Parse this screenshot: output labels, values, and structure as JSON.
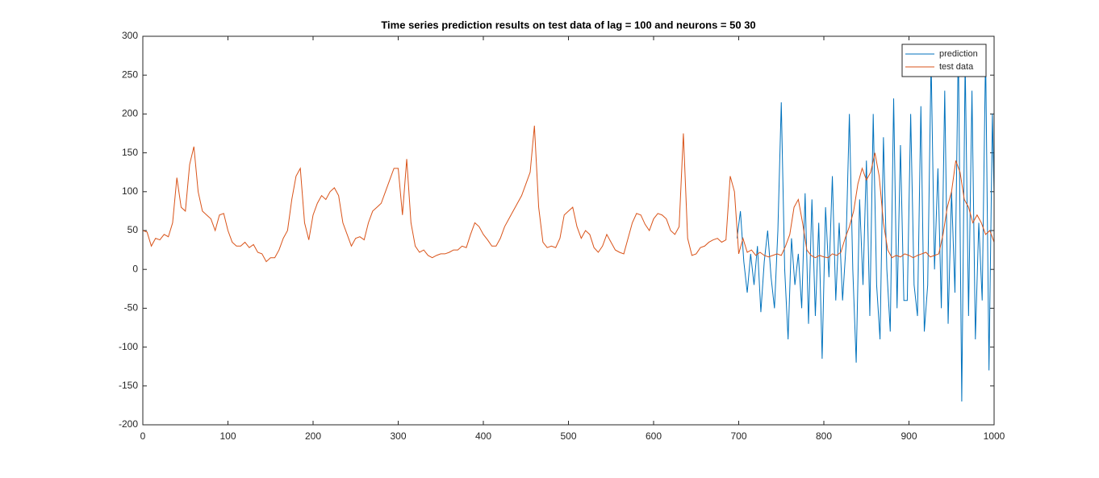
{
  "chart_data": {
    "type": "line",
    "title": "Time series prediction results on test data of lag = 100 and neurons = 50  30",
    "xlim": [
      0,
      1000
    ],
    "xticks": [
      0,
      100,
      200,
      300,
      400,
      500,
      600,
      700,
      800,
      900,
      1000
    ],
    "ylim": [
      -200,
      300
    ],
    "yticks": [
      -200,
      -150,
      -100,
      -50,
      0,
      50,
      100,
      150,
      200,
      250,
      300
    ],
    "grid": false,
    "legend": "northeast",
    "series": [
      {
        "name": "prediction",
        "color": "#0072bd",
        "x": [
          698,
          702,
          706,
          710,
          714,
          718,
          722,
          726,
          730,
          734,
          738,
          742,
          746,
          750,
          754,
          758,
          762,
          766,
          770,
          774,
          778,
          782,
          786,
          790,
          794,
          798,
          802,
          806,
          810,
          814,
          818,
          822,
          826,
          830,
          834,
          838,
          842,
          846,
          850,
          854,
          858,
          862,
          866,
          870,
          874,
          878,
          882,
          886,
          890,
          894,
          898,
          902,
          906,
          910,
          914,
          918,
          922,
          926,
          930,
          934,
          938,
          942,
          946,
          950,
          954,
          958,
          962,
          966,
          970,
          974,
          978,
          982,
          986,
          990,
          994,
          998,
          1000
        ],
        "values": [
          40,
          75,
          10,
          -30,
          20,
          -20,
          30,
          -55,
          10,
          50,
          -10,
          -50,
          50,
          215,
          0,
          -90,
          40,
          -20,
          20,
          -50,
          98,
          -70,
          90,
          -60,
          60,
          -115,
          80,
          -10,
          120,
          -40,
          60,
          -40,
          30,
          200,
          0,
          -120,
          90,
          -20,
          140,
          -60,
          200,
          -20,
          -90,
          170,
          0,
          -80,
          220,
          -50,
          160,
          -40,
          -40,
          200,
          -20,
          -60,
          210,
          -80,
          -20,
          270,
          0,
          130,
          -50,
          230,
          -70,
          100,
          -30,
          290,
          -170,
          270,
          -60,
          230,
          -90,
          60,
          -40,
          280,
          -130,
          200,
          95
        ]
      },
      {
        "name": "test data",
        "color": "#d95319",
        "x": [
          0,
          5,
          10,
          15,
          20,
          25,
          30,
          35,
          40,
          45,
          50,
          55,
          60,
          65,
          70,
          75,
          80,
          85,
          90,
          95,
          100,
          105,
          110,
          115,
          120,
          125,
          130,
          135,
          140,
          145,
          150,
          155,
          160,
          165,
          170,
          175,
          180,
          185,
          190,
          195,
          200,
          205,
          210,
          215,
          220,
          225,
          230,
          235,
          240,
          245,
          250,
          255,
          260,
          265,
          270,
          275,
          280,
          285,
          290,
          295,
          300,
          305,
          310,
          315,
          320,
          325,
          330,
          335,
          340,
          345,
          350,
          355,
          360,
          365,
          370,
          375,
          380,
          385,
          390,
          395,
          400,
          405,
          410,
          415,
          420,
          425,
          430,
          435,
          440,
          445,
          450,
          455,
          460,
          465,
          470,
          475,
          480,
          485,
          490,
          495,
          500,
          505,
          510,
          515,
          520,
          525,
          530,
          535,
          540,
          545,
          550,
          555,
          560,
          565,
          570,
          575,
          580,
          585,
          590,
          595,
          600,
          605,
          610,
          615,
          620,
          625,
          630,
          635,
          640,
          645,
          650,
          655,
          660,
          665,
          670,
          675,
          680,
          685,
          690,
          695,
          700,
          705,
          710,
          715,
          720,
          725,
          730,
          735,
          740,
          745,
          750,
          755,
          760,
          765,
          770,
          775,
          780,
          785,
          790,
          795,
          800,
          805,
          810,
          815,
          820,
          825,
          830,
          835,
          840,
          845,
          850,
          855,
          860,
          865,
          870,
          875,
          880,
          885,
          890,
          895,
          900,
          905,
          910,
          915,
          920,
          925,
          930,
          935,
          940,
          945,
          950,
          955,
          960,
          965,
          970,
          975,
          980,
          985,
          990,
          995,
          1000
        ],
        "values": [
          50,
          48,
          30,
          40,
          38,
          45,
          42,
          60,
          118,
          80,
          75,
          135,
          158,
          100,
          75,
          70,
          65,
          50,
          70,
          72,
          50,
          35,
          30,
          30,
          35,
          28,
          32,
          22,
          20,
          10,
          15,
          15,
          25,
          40,
          50,
          90,
          120,
          130,
          60,
          38,
          70,
          85,
          95,
          90,
          100,
          105,
          95,
          60,
          45,
          30,
          40,
          42,
          38,
          60,
          75,
          80,
          85,
          100,
          115,
          130,
          130,
          70,
          142,
          60,
          30,
          22,
          25,
          18,
          15,
          18,
          20,
          20,
          22,
          25,
          25,
          30,
          28,
          45,
          60,
          55,
          45,
          38,
          30,
          30,
          40,
          55,
          65,
          75,
          85,
          95,
          110,
          125,
          185,
          80,
          35,
          28,
          30,
          28,
          40,
          70,
          75,
          80,
          55,
          40,
          50,
          45,
          28,
          22,
          30,
          45,
          35,
          25,
          22,
          20,
          40,
          60,
          72,
          70,
          58,
          50,
          65,
          72,
          70,
          65,
          50,
          45,
          55,
          175,
          40,
          18,
          20,
          28,
          30,
          35,
          38,
          40,
          35,
          38,
          120,
          100,
          20,
          40,
          22,
          25,
          18,
          22,
          18,
          16,
          18,
          20,
          18,
          30,
          45,
          80,
          90,
          60,
          25,
          18,
          15,
          18,
          16,
          15,
          20,
          18,
          22,
          40,
          55,
          75,
          110,
          130,
          115,
          125,
          150,
          120,
          60,
          25,
          15,
          18,
          16,
          20,
          18,
          15,
          18,
          20,
          22,
          16,
          18,
          20,
          45,
          80,
          100,
          140,
          125,
          90,
          80,
          60,
          70,
          60,
          45,
          50,
          35
        ]
      }
    ]
  }
}
